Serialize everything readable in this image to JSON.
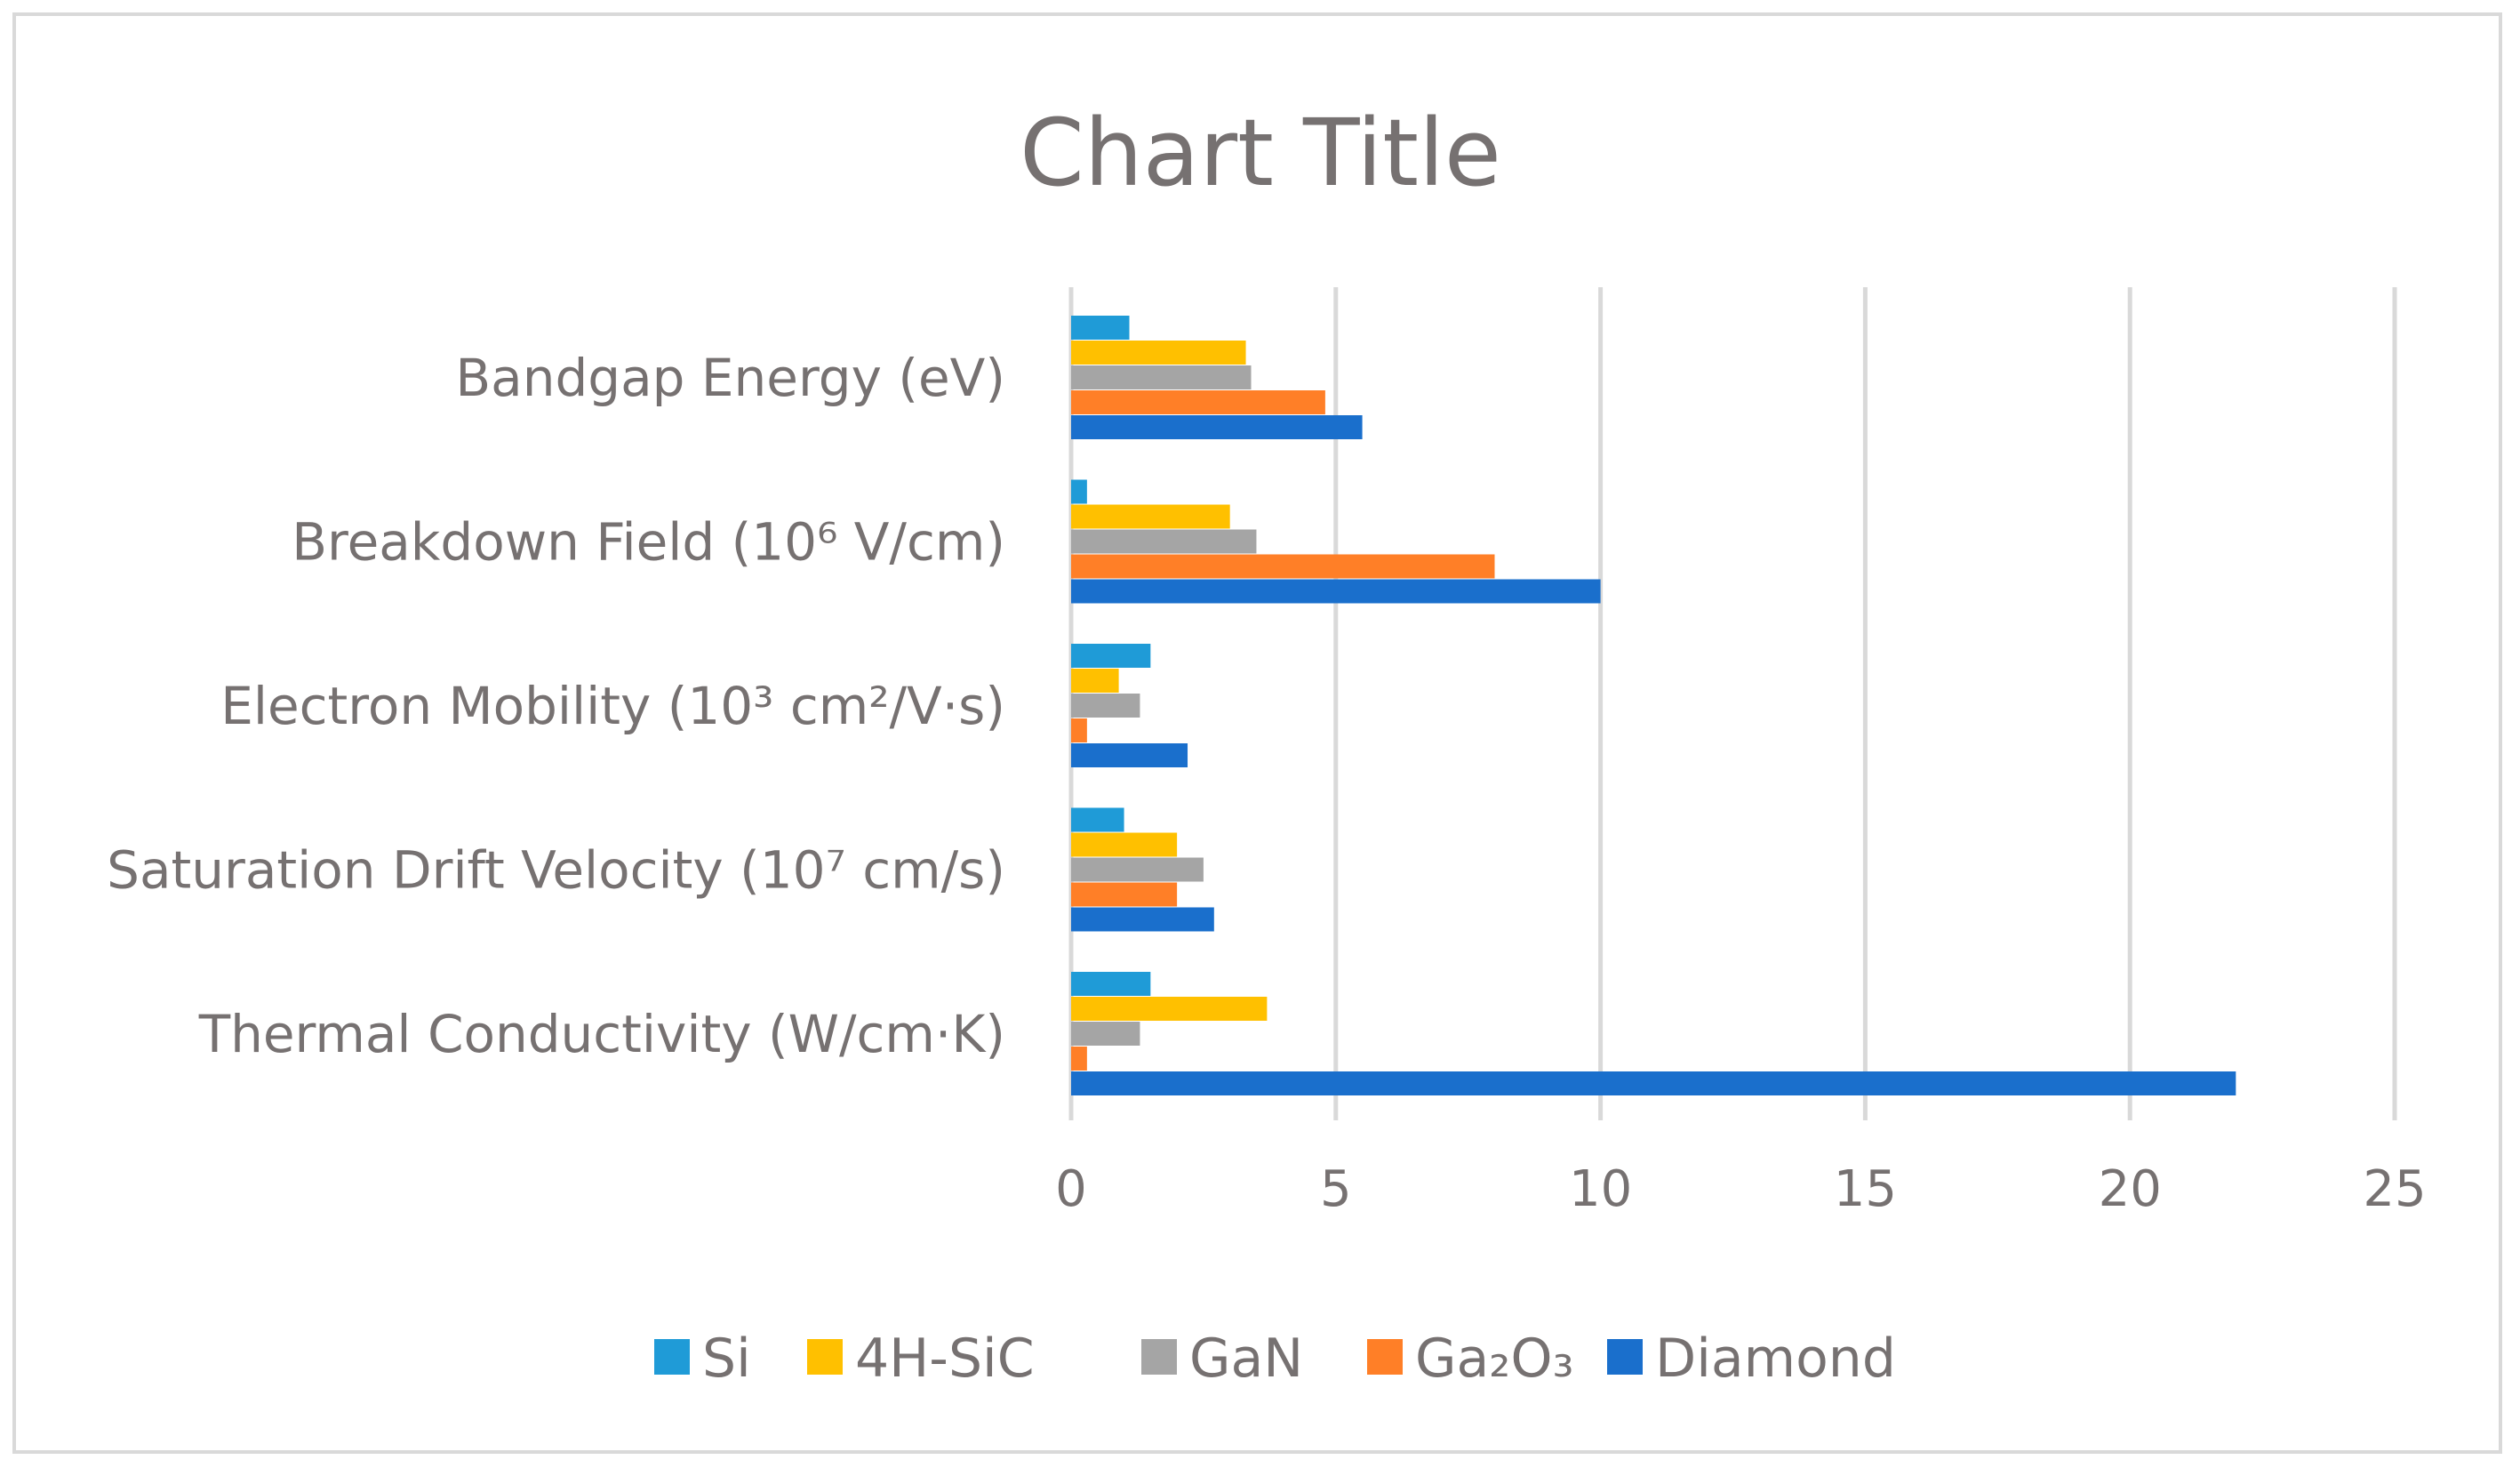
{
  "chart_data": {
    "type": "bar",
    "orientation": "horizontal",
    "title": "Chart Title",
    "categories": [
      "Bandgap Energy (eV)",
      "Breakdown Field (10⁶ V/cm)",
      "Electron Mobility (10³ cm²/V·s)",
      "Saturation Drift Velocity (10⁷ cm/s)",
      "Thermal Conductivity (W/cm·K)"
    ],
    "series": [
      {
        "name": "Si",
        "color": "#1f9bd7",
        "values": [
          1.1,
          0.3,
          1.5,
          1.0,
          1.5
        ]
      },
      {
        "name": "4H-SiC",
        "color": "#ffc000",
        "values": [
          3.3,
          3.0,
          0.9,
          2.0,
          3.7
        ]
      },
      {
        "name": "GaN",
        "color": "#a5a5a5",
        "values": [
          3.4,
          3.5,
          1.3,
          2.5,
          1.3
        ]
      },
      {
        "name": "Ga₂O₃",
        "color": "#ff7f27",
        "values": [
          4.8,
          8.0,
          0.3,
          2.0,
          0.3
        ]
      },
      {
        "name": "Diamond",
        "color": "#1a6fcc",
        "values": [
          5.5,
          10.0,
          2.2,
          2.7,
          22.0
        ]
      }
    ],
    "xlim": [
      0,
      25
    ],
    "xticks": [
      "0",
      "5",
      "10",
      "15",
      "20",
      "25"
    ],
    "xlabel": "",
    "ylabel": "",
    "grid": "vertical",
    "legend_position": "bottom"
  }
}
